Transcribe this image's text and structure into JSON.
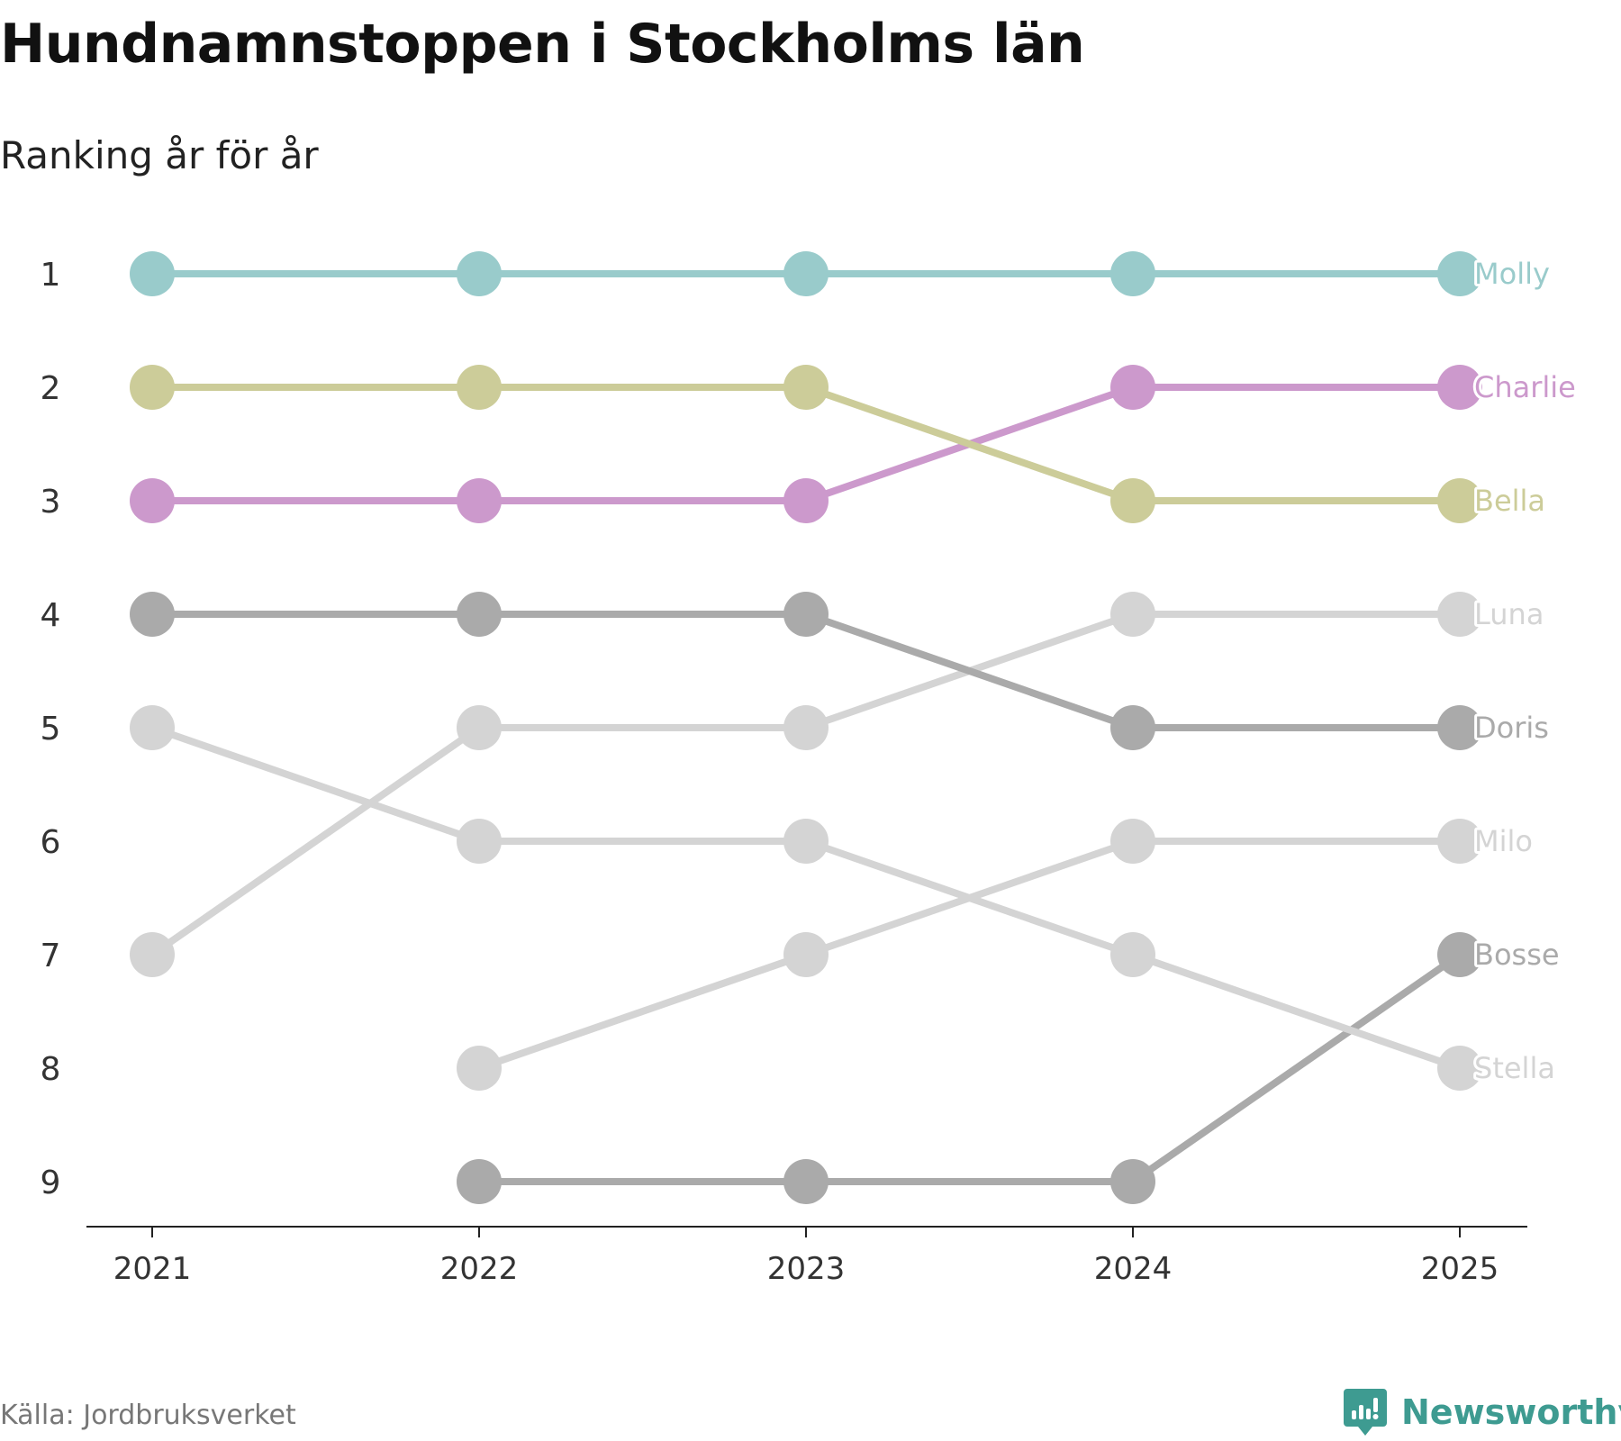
{
  "chart_data": {
    "type": "line",
    "title": "Hundnamnstoppen i Stockholms län",
    "subtitle": "Ranking år för år",
    "x": [
      "2021",
      "2022",
      "2023",
      "2024",
      "2025"
    ],
    "y_ticks": [
      "1",
      "2",
      "3",
      "4",
      "5",
      "6",
      "7",
      "8",
      "9"
    ],
    "ylim": [
      1,
      9
    ],
    "y_inverted": true,
    "grid": false,
    "series": [
      {
        "name": "Molly",
        "color": "#99cbcb",
        "ranks": [
          1,
          1,
          1,
          1,
          1
        ]
      },
      {
        "name": "Charlie",
        "color": "#cc99cc",
        "ranks": [
          3,
          3,
          3,
          2,
          2
        ]
      },
      {
        "name": "Bella",
        "color": "#cccc99",
        "ranks": [
          2,
          2,
          2,
          3,
          3
        ]
      },
      {
        "name": "Luna",
        "color": "#d4d4d4",
        "ranks": [
          7,
          5,
          5,
          4,
          4
        ]
      },
      {
        "name": "Doris",
        "color": "#aaaaaa",
        "ranks": [
          4,
          4,
          4,
          5,
          5
        ]
      },
      {
        "name": "Milo",
        "color": "#d4d4d4",
        "ranks": [
          null,
          8,
          7,
          6,
          6
        ]
      },
      {
        "name": "Bosse",
        "color": "#aaaaaa",
        "ranks": [
          null,
          9,
          9,
          9,
          7
        ]
      },
      {
        "name": "Stella",
        "color": "#d4d4d4",
        "ranks": [
          5,
          6,
          6,
          7,
          8
        ]
      }
    ]
  },
  "footer": {
    "source": "Källa: Jordbruksverket",
    "brand": "Newsworthy",
    "brand_icon": "newsworthy-logo-icon",
    "brand_color": "#3e9b91"
  }
}
